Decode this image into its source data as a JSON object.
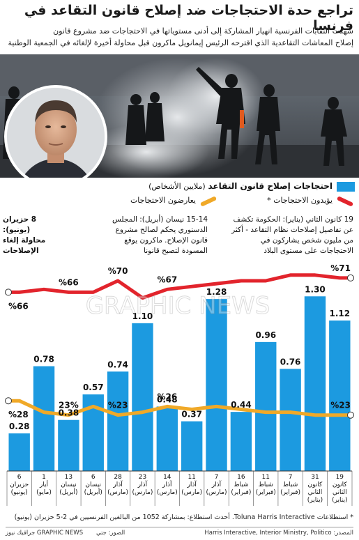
{
  "header": {
    "title": "تراجع حدة الاحتجاجات ضد إصلاح قانون التقاعد في فرنسا",
    "subtitle_line1": "شهدت النقابات الفرنسية انهيار المشاركة إلى أدنى مستوياتها في الاحتجاجات ضد مشروع قانون",
    "subtitle_line2": "إصلاح المعاشات التقاعدية الذي اقترحه الرئيس إيمانويل ماكرون قبل محاولة أخيرة لإلغائه في الجمعية الوطنية"
  },
  "legend": {
    "bars": "احتجاجات إصلاح قانون التقاعد",
    "bars_unit": "(ملايين الأشخاص)",
    "support": "يؤيدون الاحتجاجات *",
    "oppose": "يعارضون الاحتجاجات",
    "colors": {
      "bar": "#1c9ae0",
      "support": "#e2242c",
      "oppose": "#f0a928"
    }
  },
  "annotations": {
    "jan19": "19 كانون الثاني (يناير): الحكومة تكشف عن تفاصيل إصلاحات نظام التقاعد - أكثر من مليون شخص يشاركون في الاحتجاجات على مستوى البلاد",
    "apr14": "15-14 نيسان (أبريل): المجلس الدستوري يحكم لصالح مشروع قانون الإصلاح. ماكرون يوقع المسودة لتصبح قانونا",
    "jun8": "8 حزيران (يونيو): محاولة إلغاء الإصلاحات"
  },
  "watermark": "GRAPHIC NEWS",
  "footnote": "* استطلاعات Toluna Harris Interactive. أحدث استطلاع: بمشاركة 1052 من البالغين الفرنسيين في 2-5 حزيران (يونيو)",
  "source": "المصدر: Harris Interactive, Interior Ministry, Politico",
  "credits": "الصور: جتي",
  "brand": "جرافيك نيوز GRAPHIC NEWS",
  "chart_data": {
    "type": "bar",
    "categories": [
      [
        "19",
        "كانون",
        "الثاني",
        "(يناير)"
      ],
      [
        "31",
        "كانون",
        "الثاني",
        "(يناير)"
      ],
      [
        "7",
        "شباط",
        "(فبراير)"
      ],
      [
        "11",
        "شباط",
        "(فبراير)"
      ],
      [
        "16",
        "شباط",
        "(فبراير)"
      ],
      [
        "7",
        "آذار",
        "(مارس)"
      ],
      [
        "11",
        "آذار",
        "(مارس)"
      ],
      [
        "14",
        "آذار",
        "(مارس)"
      ],
      [
        "23",
        "آذار",
        "(مارس)"
      ],
      [
        "28",
        "آذار",
        "(مارس)"
      ],
      [
        "6",
        "نيسان",
        "(أبريل)"
      ],
      [
        "13",
        "نيسان",
        "(أبريل)"
      ],
      [
        "1",
        "أيار",
        "(مايو)"
      ],
      [
        "6",
        "حزيران",
        "(يونيو)"
      ]
    ],
    "series": [
      {
        "name": "احتجاجات إصلاح قانون التقاعد",
        "kind": "bar",
        "values": [
          1.12,
          1.3,
          0.76,
          0.96,
          0.44,
          1.28,
          0.37,
          0.48,
          1.1,
          0.74,
          0.57,
          0.38,
          0.78,
          0.28
        ],
        "labels": [
          "1.12",
          "1.30",
          "0.76",
          "0.96",
          "0.44",
          "1.28",
          "0.37",
          "0.48",
          "1.10",
          "0.74",
          "0.57",
          "0.38",
          "0.78",
          "0.28"
        ]
      },
      {
        "name": "يؤيدون الاحتجاجات *",
        "kind": "line",
        "values": [
          71,
          72,
          72,
          70,
          70,
          69,
          68,
          67,
          64,
          70,
          66,
          66,
          67,
          66
        ]
      },
      {
        "name": "يعارضون الاحتجاجات",
        "kind": "line",
        "values": [
          23,
          23,
          24,
          24,
          25,
          26,
          25,
          26,
          24,
          23,
          26,
          23,
          24,
          28
        ]
      }
    ],
    "point_labels": {
      "support": [
        {
          "index": 0,
          "text": "%71"
        },
        {
          "index": 7,
          "text": "%67"
        },
        {
          "index": 9,
          "text": "%70"
        },
        {
          "index": 11,
          "text": "%66"
        },
        {
          "index": 13,
          "text": "%66"
        }
      ],
      "oppose": [
        {
          "index": 0,
          "text": "%23"
        },
        {
          "index": 7,
          "text": "%26"
        },
        {
          "index": 9,
          "text": "%23"
        },
        {
          "index": 11,
          "text": "23%"
        },
        {
          "index": 13,
          "text": "%28"
        }
      ]
    },
    "ylim_bars": [
      0,
      1.4
    ],
    "ylim_pct": [
      0,
      100
    ],
    "order": "right-to-left"
  }
}
